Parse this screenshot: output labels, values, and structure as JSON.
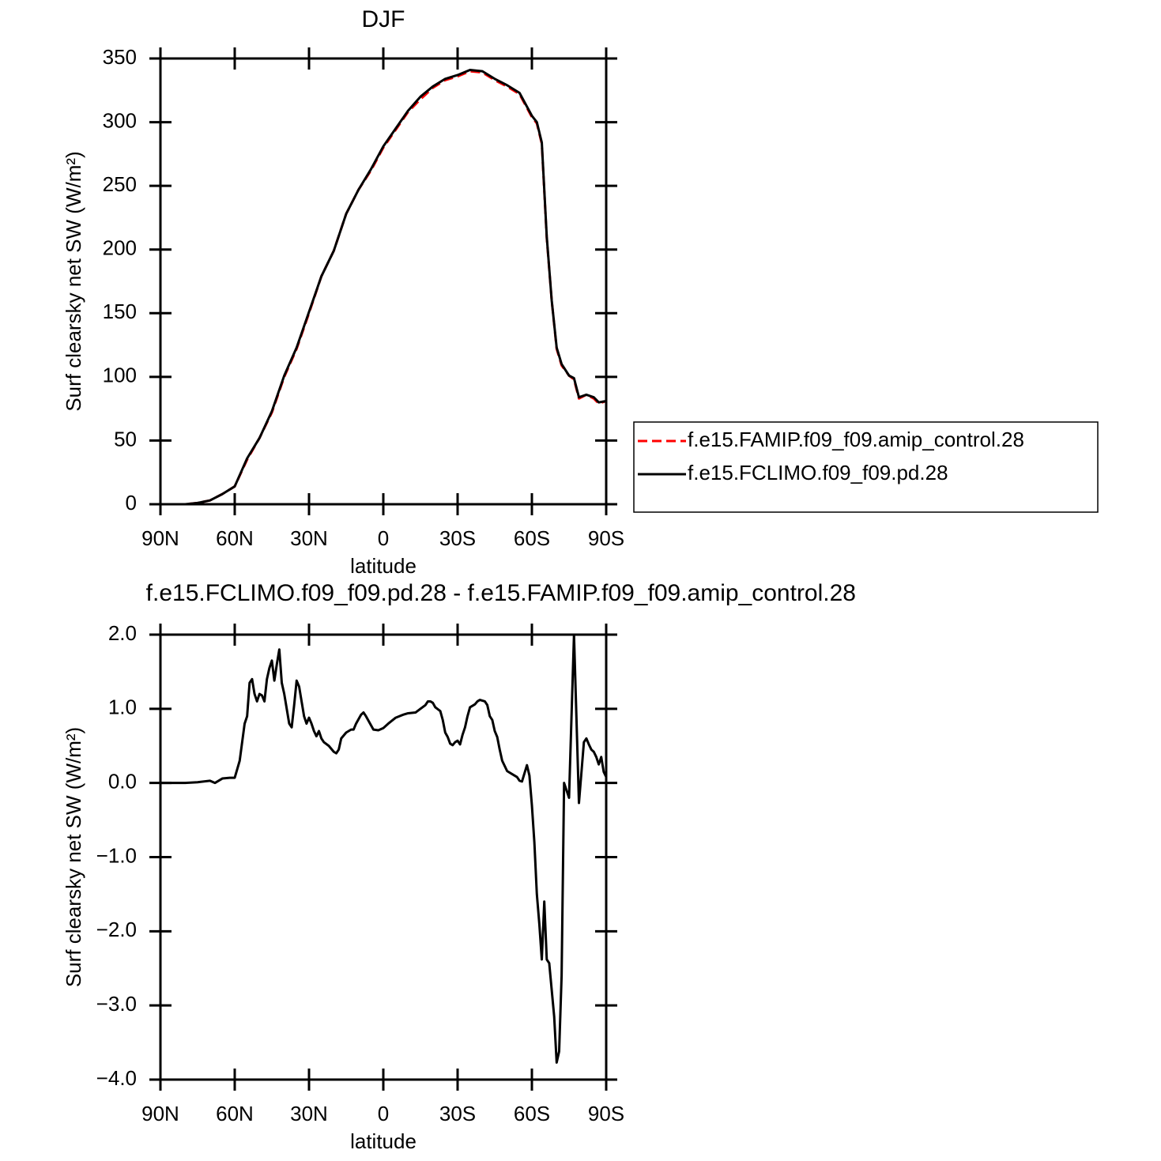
{
  "chart_data": [
    {
      "type": "line",
      "title": "DJF",
      "x_label": "latitude",
      "y_label": "Surf clearsky net SW (W/m²)",
      "xlim": [
        90,
        -90
      ],
      "xticks": [
        {
          "value": 90,
          "label": "90N"
        },
        {
          "value": 60,
          "label": "60N"
        },
        {
          "value": 30,
          "label": "30N"
        },
        0,
        {
          "value": -30,
          "label": "30S"
        },
        {
          "value": -60,
          "label": "60S"
        },
        {
          "value": -90,
          "label": "90S"
        }
      ],
      "ylim": [
        0,
        350
      ],
      "yticks": [
        0,
        50,
        100,
        150,
        200,
        250,
        300,
        350
      ],
      "legend": "right",
      "x": [
        90,
        85,
        80,
        75,
        70,
        65,
        60,
        55,
        50,
        45,
        40,
        35,
        30,
        25,
        20,
        15,
        10,
        5,
        0,
        -5,
        -10,
        -15,
        -20,
        -25,
        -30,
        -35,
        -40,
        -45,
        -50,
        -55,
        -60,
        -62,
        -64,
        -66,
        -68,
        -70,
        -72,
        -75,
        -77,
        -79,
        -82,
        -85,
        -87,
        -90
      ],
      "series": [
        {
          "name": "f.e15.FAMIP.f09_f09.amip_control.28",
          "color": "#ff0000",
          "line_style": "dashed",
          "values": [
            0,
            0,
            0,
            1,
            3,
            8,
            14,
            35,
            52,
            72,
            100,
            122,
            150,
            179,
            199,
            228,
            247,
            262,
            280,
            294,
            308,
            318,
            327,
            333,
            336,
            340,
            339,
            333,
            328,
            322,
            304,
            299,
            283,
            209,
            160,
            122,
            109,
            101,
            98,
            83,
            86,
            83,
            79,
            81
          ]
        },
        {
          "name": "f.e15.FCLIMO.f09_f09.pd.28",
          "color": "#000000",
          "line_style": "solid",
          "values": [
            0,
            0,
            0,
            1,
            3,
            8,
            14,
            36,
            52,
            73,
            101,
            123,
            151,
            179,
            199,
            228,
            247,
            263,
            281,
            295,
            309,
            320,
            328,
            334,
            337,
            341,
            340,
            334,
            329,
            323,
            305,
            300,
            284,
            210,
            160,
            123,
            110,
            101,
            99,
            84,
            86,
            84,
            80,
            81
          ]
        }
      ]
    },
    {
      "type": "line",
      "title": "f.e15.FCLIMO.f09_f09.pd.28 - f.e15.FAMIP.f09_f09.amip_control.28",
      "x_label": "latitude",
      "y_label": "Surf clearsky net SW (W/m²)",
      "xlim": [
        90,
        -90
      ],
      "xticks": [
        {
          "value": 90,
          "label": "90N"
        },
        {
          "value": 60,
          "label": "60N"
        },
        {
          "value": 30,
          "label": "30N"
        },
        0,
        {
          "value": -30,
          "label": "30S"
        },
        {
          "value": -60,
          "label": "60S"
        },
        {
          "value": -90,
          "label": "90S"
        }
      ],
      "ylim": [
        -4,
        2
      ],
      "yticks": [
        {
          "value": -4,
          "label": "−4.0"
        },
        {
          "value": -3,
          "label": "−3.0"
        },
        {
          "value": -2,
          "label": "−2.0"
        },
        {
          "value": -1,
          "label": "−1.0"
        },
        {
          "value": 0,
          "label": "0.0"
        },
        {
          "value": 1,
          "label": "1.0"
        },
        {
          "value": 2,
          "label": "2.0"
        }
      ],
      "color": "#000000",
      "line_style": "solid",
      "x": [
        90,
        80,
        75,
        70,
        68,
        65,
        62,
        60,
        58,
        56,
        55,
        54,
        53,
        52,
        51,
        50,
        49,
        48,
        47,
        46,
        45,
        44,
        43,
        42,
        41,
        40,
        39,
        38,
        37,
        36,
        35,
        34,
        33,
        32,
        31,
        30,
        29,
        28,
        27,
        26,
        25,
        24,
        22,
        20,
        19,
        18,
        17,
        15,
        13,
        12,
        11,
        9,
        8,
        7,
        5,
        4,
        2,
        0,
        -2,
        -5,
        -8,
        -10,
        -13,
        -15,
        -17,
        -18,
        -19,
        -20,
        -21,
        -23,
        -24,
        -25,
        -26,
        -27,
        -28,
        -29,
        -30,
        -31,
        -32,
        -33,
        -34,
        -35,
        -37,
        -38,
        -39,
        -41,
        -42,
        -43,
        -44,
        -45,
        -46,
        -47,
        -48,
        -50,
        -52,
        -54,
        -55,
        -56,
        -58,
        -59,
        -60,
        -61,
        -62,
        -63,
        -64,
        -65,
        -66,
        -67,
        -69,
        -70,
        -71,
        -72,
        -73,
        -75,
        -77,
        -79,
        -81,
        -82,
        -83,
        -84,
        -85,
        -86,
        -87,
        -88,
        -89,
        -90
      ],
      "values": [
        0,
        0,
        0.01,
        0.03,
        0,
        0.06,
        0.07,
        0.07,
        0.3,
        0.8,
        0.9,
        1.35,
        1.4,
        1.2,
        1.1,
        1.2,
        1.18,
        1.1,
        1.4,
        1.55,
        1.65,
        1.38,
        1.6,
        1.8,
        1.35,
        1.2,
        1.0,
        0.8,
        0.75,
        1.05,
        1.38,
        1.3,
        1.1,
        0.9,
        0.8,
        0.88,
        0.8,
        0.7,
        0.63,
        0.7,
        0.6,
        0.55,
        0.5,
        0.42,
        0.4,
        0.45,
        0.6,
        0.68,
        0.72,
        0.72,
        0.8,
        0.92,
        0.95,
        0.9,
        0.78,
        0.72,
        0.71,
        0.74,
        0.8,
        0.88,
        0.92,
        0.94,
        0.95,
        1.0,
        1.05,
        1.1,
        1.1,
        1.08,
        1.02,
        0.97,
        0.85,
        0.68,
        0.62,
        0.53,
        0.51,
        0.55,
        0.57,
        0.52,
        0.65,
        0.75,
        0.9,
        1.02,
        1.06,
        1.1,
        1.12,
        1.1,
        1.05,
        0.9,
        0.85,
        0.7,
        0.62,
        0.45,
        0.3,
        0.16,
        0.12,
        0.08,
        0.03,
        0.02,
        0.24,
        0.1,
        -0.3,
        -0.8,
        -1.5,
        -1.9,
        -2.38,
        -1.6,
        -2.38,
        -2.43,
        -3.15,
        -3.77,
        -3.62,
        -2.6,
        0.0,
        -0.2,
        2.0,
        -0.27,
        0.55,
        0.6,
        0.52,
        0.45,
        0.42,
        0.35,
        0.25,
        0.35,
        0.15,
        0.08
      ]
    }
  ]
}
